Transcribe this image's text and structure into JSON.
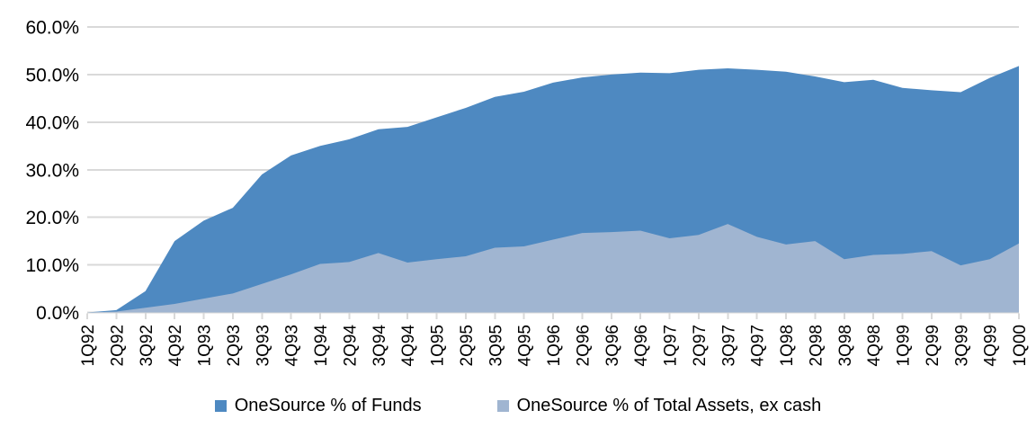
{
  "chart_data": {
    "type": "area",
    "stacked": false,
    "categories": [
      "1Q92",
      "2Q92",
      "3Q92",
      "4Q92",
      "1Q93",
      "2Q93",
      "3Q93",
      "4Q93",
      "1Q94",
      "2Q94",
      "3Q94",
      "4Q94",
      "1Q95",
      "2Q95",
      "3Q95",
      "4Q95",
      "1Q96",
      "2Q96",
      "3Q96",
      "4Q96",
      "1Q97",
      "2Q97",
      "3Q97",
      "4Q97",
      "1Q98",
      "2Q98",
      "3Q98",
      "4Q98",
      "1Q99",
      "2Q99",
      "3Q99",
      "4Q99",
      "1Q00"
    ],
    "series": [
      {
        "name": "OneSource % of Funds",
        "color": "#4e89c1",
        "values": [
          0.0,
          0.5,
          4.5,
          15.0,
          19.3,
          22.0,
          29.0,
          33.0,
          35.0,
          36.4,
          38.5,
          39.0,
          41.0,
          43.0,
          45.3,
          46.4,
          48.3,
          49.4,
          50.0,
          50.4,
          50.3,
          51.0,
          51.3,
          51.0,
          50.6,
          49.6,
          48.4,
          48.9,
          47.2,
          46.7,
          46.3,
          49.3,
          51.8
        ]
      },
      {
        "name": "OneSource % of Total Assets, ex cash",
        "color": "#a0b5d1",
        "values": [
          0.0,
          0.2,
          1.0,
          1.8,
          2.9,
          4.0,
          6.0,
          8.0,
          10.2,
          10.6,
          12.5,
          10.5,
          11.2,
          11.8,
          13.6,
          13.9,
          15.3,
          16.7,
          16.9,
          17.2,
          15.6,
          16.3,
          18.6,
          15.9,
          14.3,
          15.0,
          11.2,
          12.1,
          12.3,
          12.9,
          9.9,
          11.2,
          14.5
        ]
      }
    ],
    "title": "",
    "xlabel": "",
    "ylabel": "",
    "ylim": [
      0,
      60
    ],
    "ytick_step": 10,
    "ytick_labels": [
      "0.0%",
      "10.0%",
      "20.0%",
      "30.0%",
      "40.0%",
      "50.0%",
      "60.0%"
    ],
    "grid": true,
    "legend_position": "bottom"
  },
  "colors": {
    "gridline": "#d9d9d9",
    "axis": "#d9d9d9",
    "tick": "#d9d9d9",
    "label_text": "#000000",
    "background": "#ffffff"
  }
}
